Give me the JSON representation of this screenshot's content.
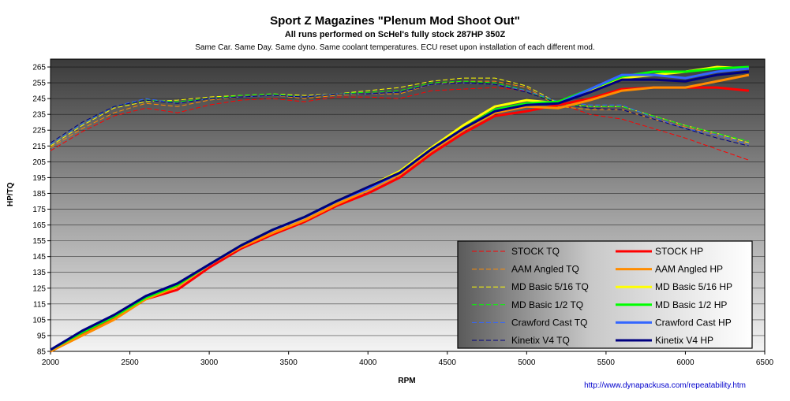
{
  "chart_data": {
    "type": "line",
    "title": "Sport Z Magazines \"Plenum Mod Shoot Out\"",
    "subtitle": "All runs performed on ScHel's fully stock 287HP 350Z",
    "note": "Same Car. Same Day. Same dyno. Same coolant temperatures.  ECU reset upon installation of each different mod.",
    "xlabel": "RPM",
    "ylabel": "HP/TQ",
    "xlim": [
      2000,
      6500
    ],
    "ylim": [
      85,
      270
    ],
    "xticks": [
      2000,
      2500,
      3000,
      3500,
      4000,
      4500,
      5000,
      5500,
      6000,
      6500
    ],
    "yticks": [
      85,
      95,
      105,
      115,
      125,
      135,
      145,
      155,
      165,
      175,
      185,
      195,
      205,
      215,
      225,
      235,
      245,
      255,
      265
    ],
    "grid": true,
    "legend_position": "bottom-right",
    "source_url": "http://www.dynapackusa.com/repeatability.htm",
    "series": [
      {
        "name": "STOCK TQ",
        "color": "#ff0000",
        "style": "dashed",
        "x": [
          2000,
          2200,
          2400,
          2600,
          2800,
          3000,
          3200,
          3400,
          3600,
          3800,
          4000,
          4200,
          4400,
          4600,
          4800,
          5000,
          5200,
          5400,
          5600,
          5800,
          6000,
          6200,
          6400
        ],
        "y": [
          212,
          224,
          234,
          239,
          236,
          241,
          244,
          245,
          243,
          246,
          246,
          245,
          250,
          251,
          252,
          250,
          242,
          235,
          232,
          226,
          220,
          213,
          206
        ]
      },
      {
        "name": "STOCK HP",
        "color": "#ff0000",
        "style": "solid",
        "x": [
          2000,
          2200,
          2400,
          2600,
          2800,
          3000,
          3200,
          3400,
          3600,
          3800,
          4000,
          4200,
          4400,
          4600,
          4800,
          5000,
          5200,
          5400,
          5600,
          5800,
          6000,
          6200,
          6400
        ],
        "y": [
          85,
          96,
          106,
          118,
          124,
          138,
          150,
          159,
          167,
          177,
          185,
          195,
          210,
          223,
          234,
          237,
          241,
          245,
          251,
          252,
          252,
          252,
          250
        ]
      },
      {
        "name": "AAM Angled TQ",
        "color": "#ff8c00",
        "style": "dashed",
        "x": [
          2000,
          2200,
          2400,
          2600,
          2800,
          3000,
          3200,
          3400,
          3600,
          3800,
          4000,
          4200,
          4400,
          4600,
          4800,
          5000,
          5200,
          5400,
          5600,
          5800,
          6000,
          6200,
          6400
        ],
        "y": [
          214,
          226,
          236,
          242,
          240,
          244,
          246,
          247,
          245,
          247,
          248,
          248,
          254,
          256,
          256,
          252,
          240,
          238,
          238,
          232,
          227,
          222,
          216
        ]
      },
      {
        "name": "AAM Angled HP",
        "color": "#ff8c00",
        "style": "solid",
        "x": [
          2000,
          2200,
          2400,
          2600,
          2800,
          3000,
          3200,
          3400,
          3600,
          3800,
          4000,
          4200,
          4400,
          4600,
          4800,
          5000,
          5200,
          5400,
          5600,
          5800,
          6000,
          6200,
          6400
        ],
        "y": [
          85,
          95,
          105,
          118,
          126,
          140,
          151,
          160,
          168,
          178,
          187,
          197,
          212,
          225,
          236,
          240,
          239,
          244,
          250,
          252,
          252,
          256,
          260
        ]
      },
      {
        "name": "MD Basic 5/16 TQ",
        "color": "#ffff00",
        "style": "dashed",
        "x": [
          2000,
          2200,
          2400,
          2600,
          2800,
          3000,
          3200,
          3400,
          3600,
          3800,
          4000,
          4200,
          4400,
          4600,
          4800,
          5000,
          5200,
          5400,
          5600,
          5800,
          6000,
          6200,
          6400
        ],
        "y": [
          215,
          228,
          239,
          243,
          244,
          246,
          247,
          248,
          247,
          248,
          250,
          252,
          256,
          258,
          258,
          253,
          242,
          240,
          240,
          234,
          228,
          223,
          217
        ]
      },
      {
        "name": "MD Basic 5/16 HP",
        "color": "#ffff00",
        "style": "solid",
        "x": [
          2000,
          2200,
          2400,
          2600,
          2800,
          3000,
          3200,
          3400,
          3600,
          3800,
          4000,
          4200,
          4400,
          4600,
          4800,
          5000,
          5200,
          5400,
          5600,
          5800,
          6000,
          6200,
          6400
        ],
        "y": [
          86,
          97,
          107,
          119,
          127,
          140,
          152,
          162,
          170,
          180,
          189,
          199,
          214,
          228,
          240,
          244,
          242,
          250,
          258,
          260,
          262,
          265,
          264
        ]
      },
      {
        "name": "MD Basic 1/2 TQ",
        "color": "#00ff00",
        "style": "dashed",
        "x": [
          2000,
          2200,
          2400,
          2600,
          2800,
          3000,
          3200,
          3400,
          3600,
          3800,
          4000,
          4200,
          4400,
          4600,
          4800,
          5000,
          5200,
          5400,
          5600,
          5800,
          6000,
          6200,
          6400
        ],
        "y": [
          216,
          229,
          240,
          244,
          243,
          245,
          247,
          248,
          246,
          248,
          249,
          250,
          255,
          256,
          255,
          250,
          242,
          240,
          240,
          234,
          228,
          223,
          218
        ]
      },
      {
        "name": "MD Basic 1/2 HP",
        "color": "#00ff00",
        "style": "solid",
        "x": [
          2000,
          2200,
          2400,
          2600,
          2800,
          3000,
          3200,
          3400,
          3600,
          3800,
          4000,
          4200,
          4400,
          4600,
          4800,
          5000,
          5200,
          5400,
          5600,
          5800,
          6000,
          6200,
          6400
        ],
        "y": [
          86,
          97,
          107,
          119,
          127,
          140,
          152,
          162,
          170,
          180,
          188,
          198,
          213,
          226,
          238,
          242,
          243,
          251,
          259,
          262,
          262,
          264,
          265
        ]
      },
      {
        "name": "Crawford Cast TQ",
        "color": "#3366ff",
        "style": "dashed",
        "x": [
          2000,
          2200,
          2400,
          2600,
          2800,
          3000,
          3200,
          3400,
          3600,
          3800,
          4000,
          4200,
          4400,
          4600,
          4800,
          5000,
          5200,
          5400,
          5600,
          5800,
          6000,
          6200,
          6400
        ],
        "y": [
          216,
          229,
          240,
          245,
          242,
          245,
          246,
          247,
          246,
          248,
          248,
          249,
          254,
          255,
          254,
          250,
          243,
          241,
          241,
          233,
          226,
          222,
          216
        ]
      },
      {
        "name": "Crawford Cast HP",
        "color": "#3366ff",
        "style": "solid",
        "x": [
          2000,
          2200,
          2400,
          2600,
          2800,
          3000,
          3200,
          3400,
          3600,
          3800,
          4000,
          4200,
          4400,
          4600,
          4800,
          5000,
          5200,
          5400,
          5600,
          5800,
          6000,
          6200,
          6400
        ],
        "y": [
          86,
          98,
          108,
          120,
          128,
          140,
          152,
          162,
          170,
          180,
          188,
          198,
          213,
          226,
          237,
          241,
          242,
          251,
          260,
          260,
          258,
          262,
          264
        ]
      },
      {
        "name": "Kinetix V4 TQ",
        "color": "#000080",
        "style": "dashed",
        "x": [
          2000,
          2200,
          2400,
          2600,
          2800,
          3000,
          3200,
          3400,
          3600,
          3800,
          4000,
          4200,
          4400,
          4600,
          4800,
          5000,
          5200,
          5400,
          5600,
          5800,
          6000,
          6200,
          6400
        ],
        "y": [
          217,
          230,
          240,
          244,
          242,
          245,
          246,
          247,
          246,
          248,
          248,
          249,
          254,
          255,
          254,
          249,
          242,
          239,
          238,
          232,
          226,
          220,
          215
        ]
      },
      {
        "name": "Kinetix V4 HP",
        "color": "#000080",
        "style": "solid",
        "x": [
          2000,
          2200,
          2400,
          2600,
          2800,
          3000,
          3200,
          3400,
          3600,
          3800,
          4000,
          4200,
          4400,
          4600,
          4800,
          5000,
          5200,
          5400,
          5600,
          5800,
          6000,
          6200,
          6400
        ],
        "y": [
          86,
          98,
          108,
          120,
          128,
          140,
          152,
          162,
          170,
          180,
          189,
          198,
          213,
          226,
          237,
          241,
          242,
          249,
          257,
          257,
          256,
          260,
          262
        ]
      }
    ]
  }
}
